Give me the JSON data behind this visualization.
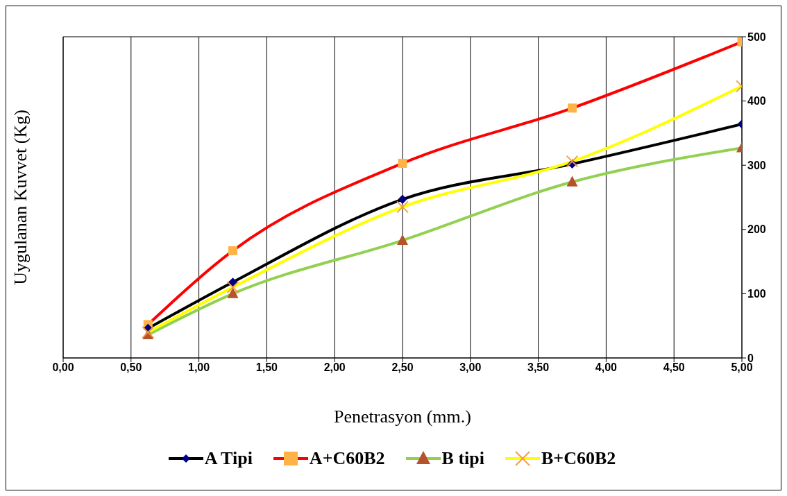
{
  "chart_data": {
    "type": "line",
    "xlabel": "Penetrasyon (mm.)",
    "ylabel": "Uygulanan Kuvvet (Kg)",
    "xlim": [
      0,
      5
    ],
    "xticks": [
      {
        "value": 0,
        "label": "0,00"
      },
      {
        "value": 0.5,
        "label": "0,50"
      },
      {
        "value": 1,
        "label": "1,00"
      },
      {
        "value": 1.5,
        "label": "1,50"
      },
      {
        "value": 2,
        "label": "2,00"
      },
      {
        "value": 2.5,
        "label": "2,50"
      },
      {
        "value": 3,
        "label": "3,00"
      },
      {
        "value": 3.5,
        "label": "3,50"
      },
      {
        "value": 4,
        "label": "4,00"
      },
      {
        "value": 4.5,
        "label": "4,50"
      },
      {
        "value": 5,
        "label": "5,00"
      }
    ],
    "ylim": [
      0,
      500
    ],
    "yticks": [
      0,
      100,
      200,
      300,
      400,
      500
    ],
    "grid": true,
    "legend": "bottom",
    "x": [
      0.625,
      1.25,
      2.5,
      3.75,
      5
    ],
    "series": [
      {
        "name": "A Tipi",
        "color": "#000000",
        "marker": "diamond",
        "colors": [
          "#000080",
          "#000080",
          "#000080",
          "#000080",
          "#000080"
        ],
        "values": [
          46,
          118,
          247,
          302,
          364
        ]
      },
      {
        "name": "A+C60B2",
        "color": "#ff0000",
        "marker": "square",
        "colors": [
          "#ffb347",
          "#ffb347",
          "#ffb347",
          "#ffb347",
          "#ffb347"
        ],
        "values": [
          52,
          167,
          303,
          389,
          492
        ]
      },
      {
        "name": "B tipi",
        "color": "#92d050",
        "marker": "triangle",
        "colors": [
          "#b5542a",
          "#b5542a",
          "#b5542a",
          "#b5542a",
          "#b5542a"
        ],
        "values": [
          36,
          100,
          183,
          274,
          327
        ]
      },
      {
        "name": "B+C60B2",
        "color": "#ffff00",
        "marker": "cross",
        "colors": [
          "#f79646",
          "#f79646",
          "#f79646",
          "#f79646",
          "#f79646"
        ],
        "values": [
          40,
          110,
          235,
          306,
          423
        ]
      }
    ]
  }
}
